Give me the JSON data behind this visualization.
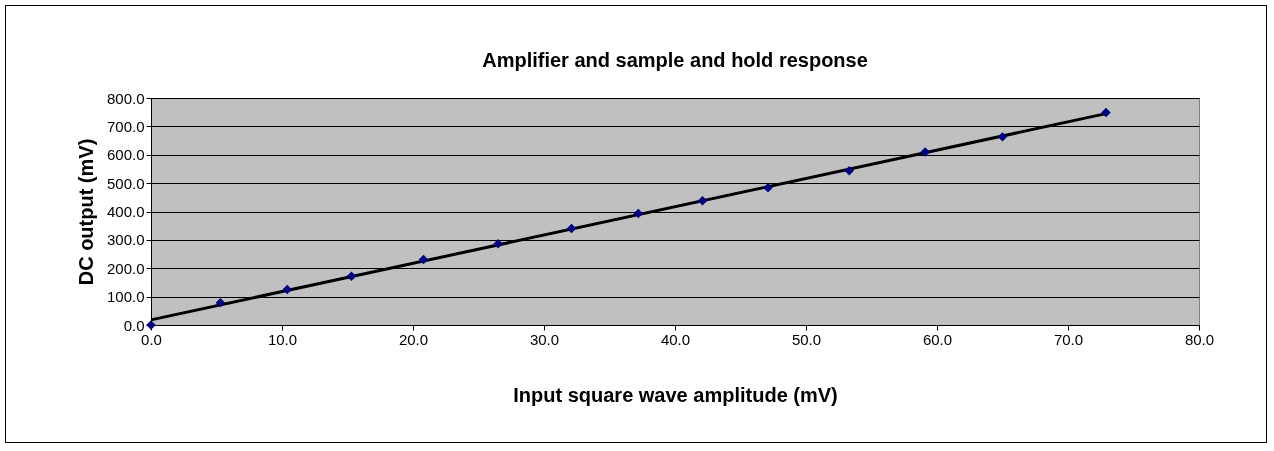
{
  "chart_data": {
    "type": "scatter",
    "title": "Amplifier and sample and hold response",
    "xlabel": "Input square wave amplitude (mV)",
    "ylabel": "DC output (mV)",
    "x": [
      0,
      5.3,
      10.4,
      15.3,
      20.8,
      26.5,
      32.1,
      37.2,
      42.1,
      47.1,
      53.3,
      59.1,
      65.0,
      72.9
    ],
    "series": [
      {
        "color": "#000080",
        "marker": "diamond",
        "values": [
          0,
          78,
          125,
          172,
          231,
          286,
          340,
          393,
          438,
          484,
          544,
          610,
          663,
          749
        ]
      },
      {
        "type": "line",
        "color": "#000000",
        "x": [
          0,
          72.9
        ],
        "values": [
          18,
          745
        ]
      }
    ],
    "xlim": [
      0,
      80
    ],
    "xticks": [
      {
        "value": 0,
        "label": "0.0"
      },
      {
        "value": 10,
        "label": "10.0"
      },
      {
        "value": 20,
        "label": "20.0"
      },
      {
        "value": 30,
        "label": "30.0"
      },
      {
        "value": 40,
        "label": "40.0"
      },
      {
        "value": 50,
        "label": "50.0"
      },
      {
        "value": 60,
        "label": "60.0"
      },
      {
        "value": 70,
        "label": "70.0"
      },
      {
        "value": 80,
        "label": "80.0"
      }
    ],
    "ylim": [
      0,
      800
    ],
    "yticks": [
      {
        "value": 0,
        "label": "0.0"
      },
      {
        "value": 100,
        "label": "100.0"
      },
      {
        "value": 200,
        "label": "200.0"
      },
      {
        "value": 300,
        "label": "300.0"
      },
      {
        "value": 400,
        "label": "400.0"
      },
      {
        "value": 500,
        "label": "500.0"
      },
      {
        "value": 600,
        "label": "600.0"
      },
      {
        "value": 700,
        "label": "700.0"
      },
      {
        "value": 800,
        "label": "800.0"
      }
    ],
    "grid": "y"
  }
}
